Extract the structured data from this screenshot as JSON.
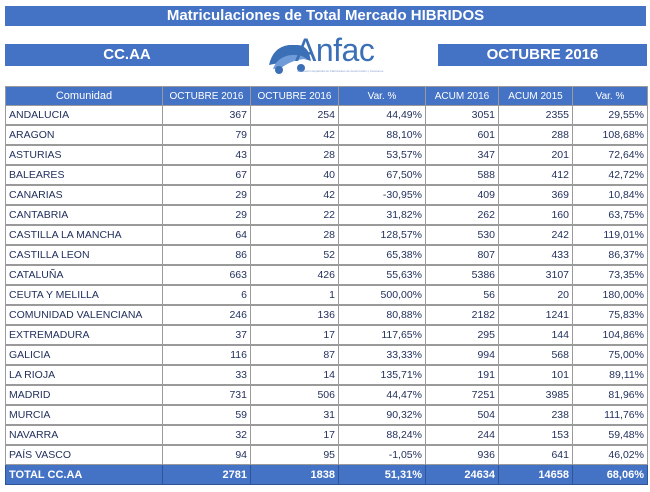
{
  "header": {
    "title": "Matriculaciones de Total Mercado HIBRIDOS",
    "region_label": "CC.AA",
    "logo_text": "Anfac",
    "logo_subtitle": "Asociación Española de Fabricantes de Automóviles y Camiones",
    "month_label": "OCTUBRE 2016"
  },
  "table": {
    "columns": [
      "Comunidad",
      "OCTUBRE  2016",
      "OCTUBRE  2016",
      "Var. %",
      "ACUM 2016",
      "ACUM 2015",
      "Var. %"
    ],
    "rows": [
      [
        "ANDALUCIA",
        "367",
        "254",
        "44,49%",
        "3051",
        "2355",
        "29,55%"
      ],
      [
        "ARAGON",
        "79",
        "42",
        "88,10%",
        "601",
        "288",
        "108,68%"
      ],
      [
        "ASTURIAS",
        "43",
        "28",
        "53,57%",
        "347",
        "201",
        "72,64%"
      ],
      [
        "BALEARES",
        "67",
        "40",
        "67,50%",
        "588",
        "412",
        "42,72%"
      ],
      [
        "CANARIAS",
        "29",
        "42",
        "-30,95%",
        "409",
        "369",
        "10,84%"
      ],
      [
        "CANTABRIA",
        "29",
        "22",
        "31,82%",
        "262",
        "160",
        "63,75%"
      ],
      [
        "CASTILLA LA MANCHA",
        "64",
        "28",
        "128,57%",
        "530",
        "242",
        "119,01%"
      ],
      [
        "CASTILLA LEON",
        "86",
        "52",
        "65,38%",
        "807",
        "433",
        "86,37%"
      ],
      [
        "CATALUÑA",
        "663",
        "426",
        "55,63%",
        "5386",
        "3107",
        "73,35%"
      ],
      [
        "CEUTA Y MELILLA",
        "6",
        "1",
        "500,00%",
        "56",
        "20",
        "180,00%"
      ],
      [
        "COMUNIDAD VALENCIANA",
        "246",
        "136",
        "80,88%",
        "2182",
        "1241",
        "75,83%"
      ],
      [
        "EXTREMADURA",
        "37",
        "17",
        "117,65%",
        "295",
        "144",
        "104,86%"
      ],
      [
        "GALICIA",
        "116",
        "87",
        "33,33%",
        "994",
        "568",
        "75,00%"
      ],
      [
        "LA RIOJA",
        "33",
        "14",
        "135,71%",
        "191",
        "101",
        "89,11%"
      ],
      [
        "MADRID",
        "731",
        "506",
        "44,47%",
        "7251",
        "3985",
        "81,96%"
      ],
      [
        "MURCIA",
        "59",
        "31",
        "90,32%",
        "504",
        "238",
        "111,76%"
      ],
      [
        "NAVARRA",
        "32",
        "17",
        "88,24%",
        "244",
        "153",
        "59,48%"
      ],
      [
        "PAÍS VASCO",
        "94",
        "95",
        "-1,05%",
        "936",
        "641",
        "46,02%"
      ]
    ],
    "total": [
      "TOTAL CC.AA",
      "2781",
      "1838",
      "51,31%",
      "24634",
      "14658",
      "68,06%"
    ]
  },
  "colors": {
    "accent": "#4472c4",
    "text": "#1f2d5a"
  }
}
